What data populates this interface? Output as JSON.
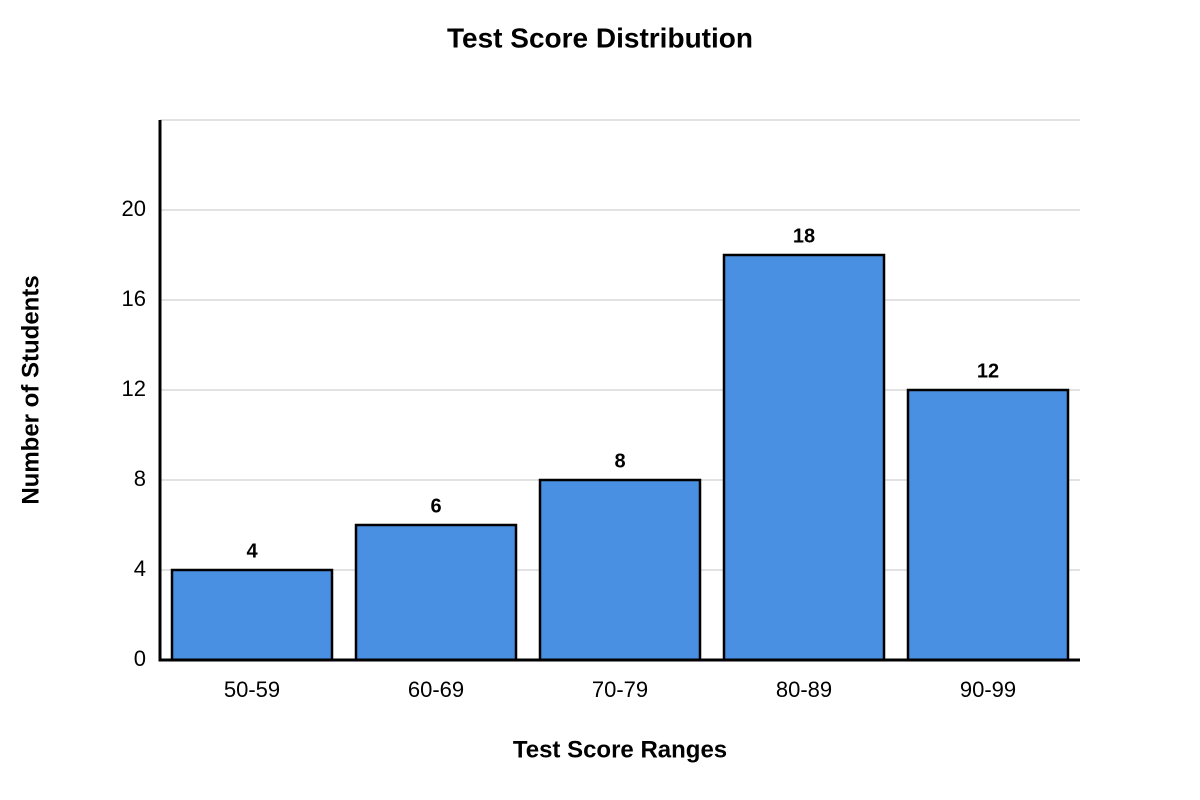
{
  "chart_data": {
    "type": "bar",
    "title": "Test Score Distribution",
    "x_label": "Test Score Ranges",
    "y_label": "Number of Students",
    "categories": [
      "50-59",
      "60-69",
      "70-79",
      "80-89",
      "90-99"
    ],
    "values": [
      4,
      6,
      8,
      18,
      12
    ],
    "color": "#4a90e2",
    "ylim": [
      0,
      24
    ],
    "yticks": [
      0,
      4,
      8,
      12,
      16,
      20
    ],
    "grid": true
  }
}
